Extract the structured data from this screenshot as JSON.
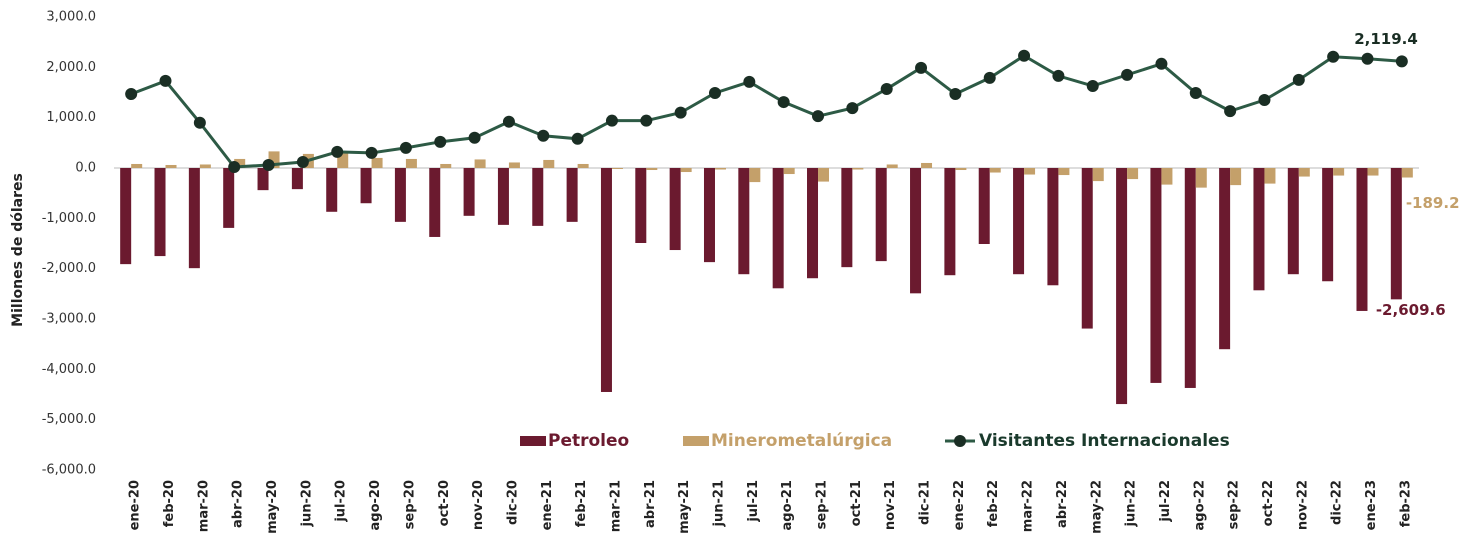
{
  "chart_data": {
    "type": "bar",
    "y_label": "Millones de dólares",
    "categories": [
      "ene-20",
      "feb-20",
      "mar-20",
      "abr-20",
      "may-20",
      "jun-20",
      "jul-20",
      "ago-20",
      "sep-20",
      "oct-20",
      "nov-20",
      "dic-20",
      "ene-21",
      "feb-21",
      "mar-21",
      "abr-21",
      "may-21",
      "jun-21",
      "jul-21",
      "ago-21",
      "sep-21",
      "oct-21",
      "nov-21",
      "dic-21",
      "ene-22",
      "feb-22",
      "mar-22",
      "abr-22",
      "may-22",
      "jun-22",
      "jul-22",
      "ago-22",
      "sep-22",
      "oct-22",
      "nov-22",
      "dic-22",
      "ene-23",
      "feb-23"
    ],
    "series": [
      {
        "name": "Petroleo",
        "type": "bar",
        "color": "#6b1a2f",
        "values": [
          -1910,
          -1750,
          -1990,
          -1190,
          -440,
          -420,
          -870,
          -700,
          -1070,
          -1370,
          -950,
          -1130,
          -1150,
          -1070,
          -4450,
          -1490,
          -1630,
          -1870,
          -2110,
          -2390,
          -2190,
          -1970,
          -1850,
          -2490,
          -2130,
          -1510,
          -2110,
          -2330,
          -3190,
          -4690,
          -4270,
          -4370,
          -3600,
          -2430,
          -2110,
          -2250,
          -2840,
          -2609.6
        ],
        "value_labels": [
          null,
          null,
          null,
          null,
          null,
          null,
          null,
          null,
          null,
          null,
          null,
          null,
          null,
          null,
          null,
          null,
          null,
          null,
          null,
          null,
          null,
          null,
          null,
          null,
          null,
          null,
          null,
          null,
          null,
          null,
          null,
          null,
          null,
          null,
          null,
          null,
          null,
          "-2,609.6"
        ]
      },
      {
        "name": "Minerometalúrgica",
        "type": "bar",
        "color": "#c4a06a",
        "values": [
          80,
          60,
          70,
          180,
          330,
          280,
          330,
          200,
          180,
          80,
          170,
          110,
          160,
          80,
          -20,
          -40,
          -80,
          -30,
          -280,
          -120,
          -270,
          -30,
          70,
          100,
          -40,
          -90,
          -130,
          -140,
          -260,
          -220,
          -330,
          -390,
          -340,
          -310,
          -170,
          -150,
          -150,
          -189.2
        ],
        "value_labels": [
          null,
          null,
          null,
          null,
          null,
          null,
          null,
          null,
          null,
          null,
          null,
          null,
          null,
          null,
          null,
          null,
          null,
          null,
          null,
          null,
          null,
          null,
          null,
          null,
          null,
          null,
          null,
          null,
          null,
          null,
          null,
          null,
          null,
          null,
          null,
          null,
          null,
          "-189.2"
        ]
      },
      {
        "name": "Visitantes Internacionales",
        "type": "line",
        "color": "#2d5a45",
        "values": [
          1470,
          1730,
          900,
          20,
          60,
          120,
          320,
          300,
          400,
          520,
          600,
          920,
          640,
          580,
          940,
          940,
          1100,
          1490,
          1710,
          1310,
          1030,
          1190,
          1570,
          1990,
          1470,
          1790,
          2230,
          1830,
          1630,
          1850,
          2070,
          1490,
          1130,
          1350,
          1750,
          2210,
          2170,
          2119.4
        ],
        "value_labels": [
          null,
          null,
          null,
          null,
          null,
          null,
          null,
          null,
          null,
          null,
          null,
          null,
          null,
          null,
          null,
          null,
          null,
          null,
          null,
          null,
          null,
          null,
          null,
          null,
          null,
          null,
          null,
          null,
          null,
          null,
          null,
          null,
          null,
          null,
          null,
          null,
          null,
          "2,119.4"
        ]
      }
    ],
    "ylim": [
      -6000,
      3000
    ],
    "yticks": [
      {
        "value": -6000,
        "label": "-6,000.0"
      },
      {
        "value": -5000,
        "label": "-5,000.0"
      },
      {
        "value": -4000,
        "label": "-4,000.0"
      },
      {
        "value": -3000,
        "label": "-3,000.0"
      },
      {
        "value": -2000,
        "label": "-2,000.0"
      },
      {
        "value": -1000,
        "label": "-1,000.0"
      },
      {
        "value": 0,
        "label": "0.0"
      },
      {
        "value": 1000,
        "label": "1,000.0"
      },
      {
        "value": 2000,
        "label": "2,000.0"
      },
      {
        "value": 3000,
        "label": "3,000.0"
      }
    ],
    "grid": false
  }
}
